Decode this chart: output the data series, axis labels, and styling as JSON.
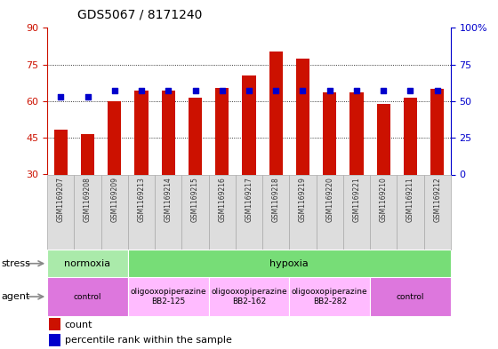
{
  "title": "GDS5067 / 8171240",
  "samples": [
    "GSM1169207",
    "GSM1169208",
    "GSM1169209",
    "GSM1169213",
    "GSM1169214",
    "GSM1169215",
    "GSM1169216",
    "GSM1169217",
    "GSM1169218",
    "GSM1169219",
    "GSM1169220",
    "GSM1169221",
    "GSM1169210",
    "GSM1169211",
    "GSM1169212"
  ],
  "counts": [
    48.5,
    46.5,
    60.0,
    64.5,
    64.5,
    61.5,
    65.5,
    70.5,
    80.5,
    77.5,
    63.5,
    63.5,
    59.0,
    61.5,
    65.0
  ],
  "percentiles": [
    53.0,
    53.0,
    57.5,
    57.5,
    57.5,
    57.5,
    57.5,
    57.5,
    57.5,
    57.5,
    57.5,
    57.5,
    57.5,
    57.5,
    57.5
  ],
  "bar_color": "#CC1100",
  "dot_color": "#0000CC",
  "ymin": 30,
  "ymax": 90,
  "left_yticks": [
    30,
    45,
    60,
    75,
    90
  ],
  "right_yticks": [
    0,
    25,
    50,
    75,
    100
  ],
  "grid_lines": [
    45,
    60,
    75
  ],
  "stress_groups": [
    {
      "label": "normoxia",
      "start": 0,
      "end": 3,
      "color": "#AAEAAA"
    },
    {
      "label": "hypoxia",
      "start": 3,
      "end": 15,
      "color": "#77DD77"
    }
  ],
  "agent_groups": [
    {
      "label": "control",
      "start": 0,
      "end": 3,
      "color": "#DD77DD"
    },
    {
      "label": "oligooxopiperazine\nBB2-125",
      "start": 3,
      "end": 6,
      "color": "#FFBBFF"
    },
    {
      "label": "oligooxopiperazine\nBB2-162",
      "start": 6,
      "end": 9,
      "color": "#FFBBFF"
    },
    {
      "label": "oligooxopiperazine\nBB2-282",
      "start": 9,
      "end": 12,
      "color": "#FFBBFF"
    },
    {
      "label": "control",
      "start": 12,
      "end": 15,
      "color": "#DD77DD"
    }
  ],
  "bar_width": 0.5,
  "cell_color_even": "#DDDDDD",
  "cell_color_odd": "#CCCCCC",
  "cell_border": "#AAAAAA"
}
